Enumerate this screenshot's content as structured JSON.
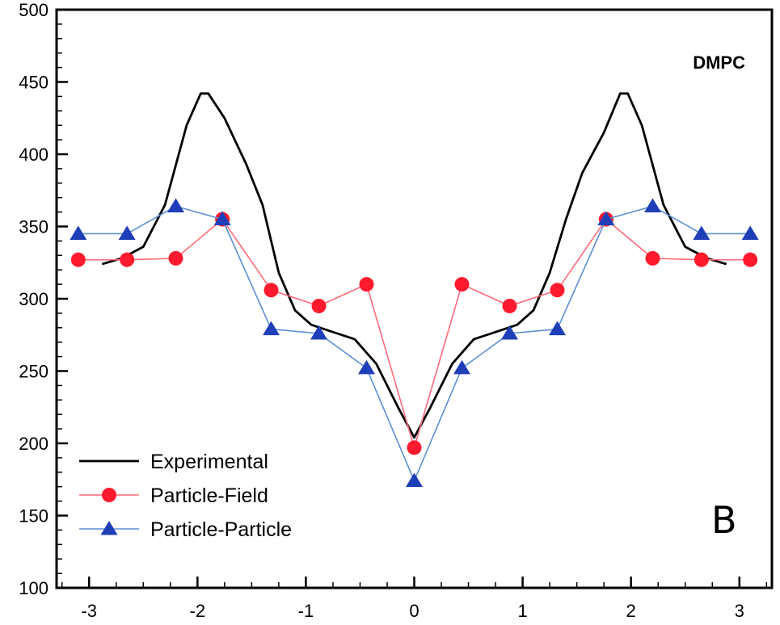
{
  "chart_data": {
    "type": "line",
    "title": "",
    "xlabel": "",
    "ylabel": "",
    "xlim": [
      -3.3,
      3.3
    ],
    "ylim": [
      100,
      500
    ],
    "x_ticks": [
      -3,
      -2,
      -1,
      0,
      1,
      2,
      3
    ],
    "y_ticks": [
      100,
      150,
      200,
      250,
      300,
      350,
      400,
      450,
      500
    ],
    "grid": false,
    "legend_position": "bottom-left",
    "annotations": {
      "label": "DMPC",
      "panel": "B"
    },
    "series": [
      {
        "name": "Experimental",
        "color": "#000000",
        "marker": "none",
        "points": [
          [
            -2.88,
            324
          ],
          [
            -2.7,
            328
          ],
          [
            -2.5,
            336
          ],
          [
            -2.3,
            365
          ],
          [
            -2.1,
            420
          ],
          [
            -1.97,
            442
          ],
          [
            -1.9,
            442
          ],
          [
            -1.75,
            425
          ],
          [
            -1.55,
            393
          ],
          [
            -1.4,
            365
          ],
          [
            -1.25,
            318
          ],
          [
            -1.1,
            292
          ],
          [
            -0.95,
            282
          ],
          [
            -0.75,
            277
          ],
          [
            -0.55,
            272
          ],
          [
            -0.35,
            255
          ],
          [
            -0.15,
            225
          ],
          [
            0.0,
            204
          ],
          [
            0.15,
            225
          ],
          [
            0.35,
            255
          ],
          [
            0.55,
            272
          ],
          [
            0.75,
            277
          ],
          [
            0.95,
            282
          ],
          [
            1.1,
            292
          ],
          [
            1.25,
            318
          ],
          [
            1.4,
            355
          ],
          [
            1.55,
            387
          ],
          [
            1.75,
            415
          ],
          [
            1.9,
            442
          ],
          [
            1.97,
            442
          ],
          [
            2.1,
            420
          ],
          [
            2.3,
            365
          ],
          [
            2.5,
            336
          ],
          [
            2.7,
            328
          ],
          [
            2.88,
            324
          ]
        ]
      },
      {
        "name": "Particle-Field",
        "color": "#ff6a78",
        "marker": "circle",
        "marker_color": "#ff1a2e",
        "points": [
          [
            -3.1,
            327
          ],
          [
            -2.65,
            327
          ],
          [
            -2.2,
            328
          ],
          [
            -1.77,
            355
          ],
          [
            -1.32,
            306
          ],
          [
            -0.88,
            295
          ],
          [
            -0.44,
            310
          ],
          [
            0.0,
            197
          ],
          [
            0.44,
            310
          ],
          [
            0.88,
            295
          ],
          [
            1.32,
            306
          ],
          [
            1.77,
            355
          ],
          [
            2.2,
            328
          ],
          [
            2.65,
            327
          ],
          [
            3.1,
            327
          ]
        ]
      },
      {
        "name": "Particle-Particle",
        "color": "#5b8fd6",
        "marker": "triangle",
        "marker_color": "#1f3fb8",
        "points": [
          [
            -3.1,
            345
          ],
          [
            -2.65,
            345
          ],
          [
            -2.2,
            364
          ],
          [
            -1.77,
            355
          ],
          [
            -1.32,
            279
          ],
          [
            -0.88,
            276
          ],
          [
            -0.44,
            252
          ],
          [
            0.0,
            174
          ],
          [
            0.44,
            252
          ],
          [
            0.88,
            276
          ],
          [
            1.32,
            279
          ],
          [
            1.77,
            355
          ],
          [
            2.2,
            364
          ],
          [
            2.65,
            345
          ],
          [
            3.1,
            345
          ]
        ]
      }
    ]
  }
}
